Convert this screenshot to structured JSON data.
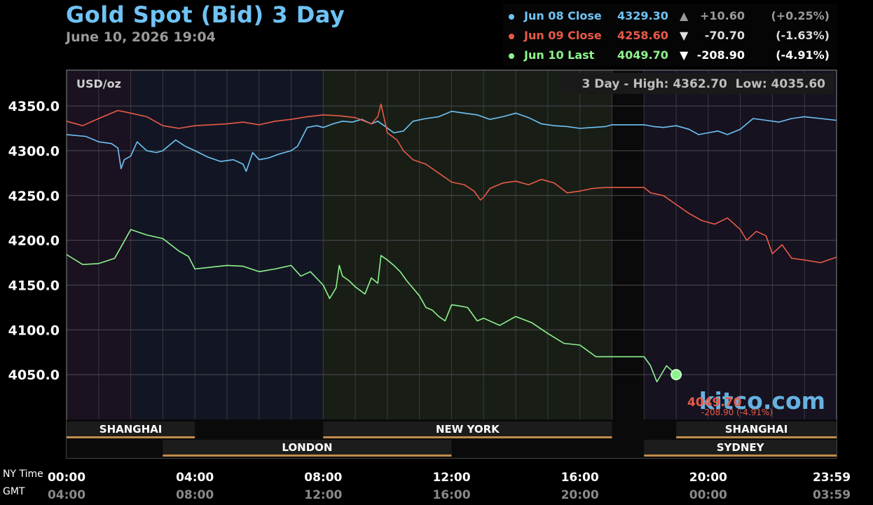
{
  "header": {
    "title": "Gold Spot (Bid) 3 Day",
    "subtitle": "June 10, 2026 19:04"
  },
  "legend": [
    {
      "name": "Jun 08 Close",
      "value": "4329.30",
      "arrow": "▲",
      "change": "+10.60",
      "pct": "(+0.25%)",
      "color": "#6fc3f5",
      "change_color": "#9a9a9a"
    },
    {
      "name": "Jun 09 Close",
      "value": "4258.60",
      "arrow": "▼",
      "change": "-70.70",
      "pct": "(-1.63%)",
      "color": "#e85a48",
      "change_color": "#dddddd"
    },
    {
      "name": "Jun 10 Last",
      "value": "4049.70",
      "arrow": "▼",
      "change": "-208.90",
      "pct": "(-4.91%)",
      "color": "#8ef28e",
      "change_color": "#ffffff"
    }
  ],
  "chart": {
    "unit_label": "USD/oz",
    "range_text": "3 Day - High: 4362.70  Low: 4035.60",
    "watermark": "kitco.com",
    "last_price": "4049.70",
    "last_change": "-208.90 (-4.91%)",
    "sessions_top": [
      {
        "name": "SHANGHAI",
        "from": 0,
        "to": 4
      },
      {
        "name": "NEW YORK",
        "from": 8,
        "to": 17
      },
      {
        "name": "SHANGHAI",
        "from": 19,
        "to": 24
      }
    ],
    "sessions_bottom": [
      {
        "name": "LONDON",
        "from": 3,
        "to": 12
      },
      {
        "name": "SYDNEY",
        "from": 18,
        "to": 24
      }
    ],
    "x_rows": [
      {
        "label": "NY Time",
        "ticks": [
          "00:00",
          "04:00",
          "08:00",
          "12:00",
          "16:00",
          "20:00",
          "23:59"
        ]
      },
      {
        "label": "GMT",
        "ticks": [
          "04:00",
          "08:00",
          "12:00",
          "16:00",
          "20:00",
          "00:00",
          "03:59"
        ]
      }
    ]
  },
  "chart_data": {
    "type": "line",
    "title": "Gold Spot (Bid) 3 Day",
    "ylabel": "USD/oz",
    "ylim": [
      4000,
      4390
    ],
    "yticks": [
      4050,
      4100,
      4150,
      4200,
      4250,
      4300,
      4350
    ],
    "xlim": [
      0,
      24
    ],
    "x_unit": "hours (NY time)",
    "grid": true,
    "legend_position": "top-right",
    "series": [
      {
        "name": "Jun 08",
        "color": "#6fc3f5",
        "x": [
          0,
          0.6,
          1,
          1.4,
          1.6,
          1.7,
          1.8,
          2,
          2.2,
          2.5,
          2.8,
          3,
          3.4,
          3.7,
          4,
          4.4,
          4.8,
          5.2,
          5.5,
          5.6,
          5.8,
          6,
          6.3,
          6.6,
          7,
          7.2,
          7.5,
          7.8,
          8,
          8.3,
          8.6,
          8.9,
          9.2,
          9.5,
          9.7,
          9.9,
          10.2,
          10.5,
          10.8,
          11.2,
          11.6,
          12,
          12.4,
          12.8,
          13.2,
          13.6,
          14,
          14.4,
          14.8,
          15.2,
          15.6,
          16,
          16.4,
          16.8,
          17,
          17.5,
          18,
          18.3,
          18.6,
          19,
          19.4,
          19.7,
          20,
          20.3,
          20.6,
          21,
          21.4,
          21.8,
          22.2,
          22.6,
          23,
          23.5,
          23.99
        ],
        "y": [
          4318,
          4316,
          4310,
          4308,
          4303,
          4280,
          4290,
          4294,
          4310,
          4300,
          4298,
          4300,
          4312,
          4305,
          4300,
          4293,
          4288,
          4290,
          4285,
          4277,
          4298,
          4290,
          4292,
          4296,
          4300,
          4305,
          4326,
          4328,
          4326,
          4330,
          4333,
          4332,
          4335,
          4330,
          4333,
          4328,
          4320,
          4322,
          4333,
          4336,
          4338,
          4344,
          4342,
          4340,
          4335,
          4338,
          4342,
          4337,
          4330,
          4328,
          4327,
          4325,
          4326,
          4327,
          4329,
          4329,
          4329,
          4327,
          4326,
          4328,
          4324,
          4318,
          4320,
          4322,
          4318,
          4324,
          4336,
          4334,
          4332,
          4336,
          4338,
          4336,
          4334
        ]
      },
      {
        "name": "Jun 09",
        "color": "#e85a48",
        "x": [
          0,
          0.5,
          1,
          1.6,
          2,
          2.5,
          3,
          3.5,
          4,
          4.5,
          5,
          5.5,
          6,
          6.5,
          7,
          7.5,
          8,
          8.5,
          9,
          9.5,
          9.7,
          9.8,
          10,
          10.3,
          10.5,
          10.8,
          11.2,
          11.6,
          12,
          12.4,
          12.7,
          12.9,
          13,
          13.2,
          13.6,
          14,
          14.4,
          14.8,
          15.2,
          15.6,
          16,
          16.4,
          16.8,
          17,
          17.5,
          18,
          18.2,
          18.6,
          19,
          19.4,
          19.8,
          20.2,
          20.6,
          21,
          21.2,
          21.5,
          21.8,
          22,
          22.3,
          22.6,
          23,
          23.5,
          23.99
        ],
        "y": [
          4333,
          4328,
          4336,
          4345,
          4342,
          4338,
          4328,
          4325,
          4328,
          4329,
          4330,
          4332,
          4329,
          4333,
          4335,
          4338,
          4340,
          4339,
          4337,
          4330,
          4338,
          4352,
          4320,
          4312,
          4300,
          4290,
          4285,
          4275,
          4265,
          4262,
          4255,
          4245,
          4248,
          4258,
          4264,
          4266,
          4262,
          4268,
          4264,
          4253,
          4255,
          4258,
          4259,
          4259,
          4259,
          4259,
          4253,
          4250,
          4240,
          4230,
          4222,
          4218,
          4225,
          4212,
          4200,
          4210,
          4205,
          4185,
          4195,
          4180,
          4178,
          4175,
          4181
        ]
      },
      {
        "name": "Jun 10",
        "color": "#8ef28e",
        "x": [
          0,
          0.5,
          1,
          1.5,
          2,
          2.5,
          3,
          3.5,
          3.8,
          4,
          4.5,
          5,
          5.5,
          6,
          6.5,
          7,
          7.3,
          7.6,
          8,
          8.2,
          8.4,
          8.5,
          8.6,
          8.8,
          9,
          9.3,
          9.5,
          9.7,
          9.8,
          10,
          10.2,
          10.4,
          10.6,
          11,
          11.2,
          11.4,
          11.6,
          11.8,
          12,
          12.2,
          12.5,
          12.8,
          13,
          13.5,
          14,
          14.5,
          15,
          15.5,
          16,
          16.5,
          17,
          17.5,
          18,
          18.2,
          18.4,
          18.7,
          19
        ],
        "y": [
          4184,
          4173,
          4174,
          4180,
          4212,
          4206,
          4202,
          4188,
          4182,
          4168,
          4170,
          4172,
          4171,
          4165,
          4168,
          4172,
          4160,
          4165,
          4150,
          4135,
          4147,
          4172,
          4160,
          4155,
          4148,
          4140,
          4158,
          4152,
          4183,
          4178,
          4172,
          4165,
          4155,
          4138,
          4125,
          4122,
          4115,
          4110,
          4128,
          4127,
          4125,
          4110,
          4113,
          4105,
          4115,
          4108,
          4096,
          4085,
          4083,
          4070,
          4070,
          4070,
          4070,
          4060,
          4042,
          4060,
          4050
        ]
      }
    ]
  }
}
